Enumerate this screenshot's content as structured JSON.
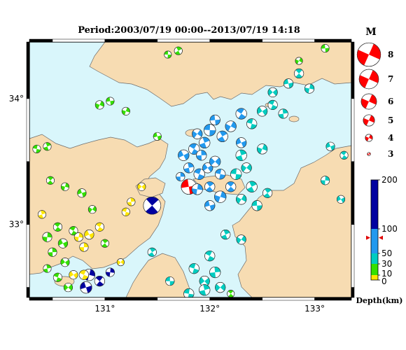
{
  "title": "Period:2003/07/19 00:00--2013/07/19 14:18",
  "map": {
    "lon_range": [
      130.28,
      133.35
    ],
    "lat_range": [
      32.42,
      34.45
    ],
    "lon_ticks": [
      {
        "value": 131,
        "label": "131°"
      },
      {
        "value": 132,
        "label": "132°"
      },
      {
        "value": 133,
        "label": "133°"
      }
    ],
    "lat_ticks": [
      {
        "value": 34,
        "label": "34°"
      },
      {
        "value": 33,
        "label": "33°"
      }
    ],
    "colors": {
      "sea": "#d9f6fb",
      "land": "#f7dcb2",
      "coast": "#6b6b6b",
      "frame": "#000000"
    }
  },
  "magnitude_legend": {
    "heading": "M",
    "items": [
      {
        "m": 8,
        "label": "8"
      },
      {
        "m": 7,
        "label": "7"
      },
      {
        "m": 6,
        "label": "6"
      },
      {
        "m": 5,
        "label": "5"
      },
      {
        "m": 4,
        "label": "4"
      },
      {
        "m": 3,
        "label": "3"
      }
    ],
    "color": "#ff0000"
  },
  "depth_legend": {
    "unit": "Depth(km)",
    "ticks": [
      {
        "value": 200,
        "label": "200"
      },
      {
        "value": 100,
        "label": "100"
      },
      {
        "value": 50,
        "label": "50"
      },
      {
        "value": 30,
        "label": "30"
      },
      {
        "value": 10,
        "label": "10"
      },
      {
        "value": 0,
        "label": "0"
      }
    ],
    "bands": [
      {
        "from": 0,
        "to": 10,
        "color": "#ffe600"
      },
      {
        "from": 10,
        "to": 30,
        "color": "#33e000"
      },
      {
        "from": 30,
        "to": 50,
        "color": "#00ccc0"
      },
      {
        "from": 50,
        "to": 100,
        "color": "#2299ee"
      },
      {
        "from": 100,
        "to": 200,
        "color": "#0000a0"
      }
    ],
    "marker_depth": 82
  },
  "events": [
    {
      "lon": 131.8,
      "lat": 33.3,
      "m": 4.3,
      "depth": 82,
      "color": "#ff0000"
    },
    {
      "lon": 131.45,
      "lat": 33.15,
      "m": 4.6,
      "depth": 150,
      "color": "#0000a0"
    },
    {
      "lon": 130.85,
      "lat": 32.6,
      "m": 3.8,
      "depth": 160,
      "color": "#0000a0"
    },
    {
      "lon": 130.82,
      "lat": 32.5,
      "m": 3.8,
      "depth": 160,
      "color": "#0000a0"
    },
    {
      "lon": 130.95,
      "lat": 32.55,
      "m": 3.6,
      "depth": 150,
      "color": "#0000a0"
    },
    {
      "lon": 131.05,
      "lat": 32.62,
      "m": 3.4,
      "depth": 150,
      "color": "#0000a0"
    },
    {
      "lon": 131.75,
      "lat": 33.55,
      "m": 3.7,
      "depth": 70,
      "color": "#2299ee"
    },
    {
      "lon": 131.85,
      "lat": 33.6,
      "m": 3.7,
      "depth": 70,
      "color": "#2299ee"
    },
    {
      "lon": 131.92,
      "lat": 33.55,
      "m": 3.6,
      "depth": 70,
      "color": "#2299ee"
    },
    {
      "lon": 131.98,
      "lat": 33.45,
      "m": 3.6,
      "depth": 70,
      "color": "#2299ee"
    },
    {
      "lon": 131.9,
      "lat": 33.4,
      "m": 3.7,
      "depth": 70,
      "color": "#2299ee"
    },
    {
      "lon": 131.8,
      "lat": 33.45,
      "m": 3.6,
      "depth": 70,
      "color": "#2299ee"
    },
    {
      "lon": 132.05,
      "lat": 33.5,
      "m": 3.7,
      "depth": 70,
      "color": "#2299ee"
    },
    {
      "lon": 132.1,
      "lat": 33.4,
      "m": 3.6,
      "depth": 70,
      "color": "#2299ee"
    },
    {
      "lon": 131.95,
      "lat": 33.65,
      "m": 3.7,
      "depth": 70,
      "color": "#2299ee"
    },
    {
      "lon": 131.88,
      "lat": 33.72,
      "m": 3.6,
      "depth": 70,
      "color": "#2299ee"
    },
    {
      "lon": 132.0,
      "lat": 33.75,
      "m": 3.8,
      "depth": 70,
      "color": "#2299ee"
    },
    {
      "lon": 132.12,
      "lat": 33.7,
      "m": 3.7,
      "depth": 70,
      "color": "#2299ee"
    },
    {
      "lon": 132.2,
      "lat": 33.78,
      "m": 3.7,
      "depth": 70,
      "color": "#2299ee"
    },
    {
      "lon": 132.05,
      "lat": 33.83,
      "m": 3.6,
      "depth": 70,
      "color": "#2299ee"
    },
    {
      "lon": 132.0,
      "lat": 33.3,
      "m": 3.6,
      "depth": 70,
      "color": "#2299ee"
    },
    {
      "lon": 132.1,
      "lat": 33.22,
      "m": 3.8,
      "depth": 70,
      "color": "#2299ee"
    },
    {
      "lon": 132.0,
      "lat": 33.15,
      "m": 3.6,
      "depth": 70,
      "color": "#2299ee"
    },
    {
      "lon": 132.2,
      "lat": 33.3,
      "m": 3.6,
      "depth": 70,
      "color": "#2299ee"
    },
    {
      "lon": 131.88,
      "lat": 33.28,
      "m": 3.7,
      "depth": 70,
      "color": "#2299ee"
    },
    {
      "lon": 132.3,
      "lat": 33.65,
      "m": 3.6,
      "depth": 70,
      "color": "#2299ee"
    },
    {
      "lon": 132.3,
      "lat": 33.88,
      "m": 3.7,
      "depth": 70,
      "color": "#2299ee"
    },
    {
      "lon": 131.72,
      "lat": 33.38,
      "m": 3.4,
      "depth": 70,
      "color": "#2299ee"
    },
    {
      "lon": 132.5,
      "lat": 33.9,
      "m": 3.6,
      "depth": 40,
      "color": "#00ccc0"
    },
    {
      "lon": 132.6,
      "lat": 33.95,
      "m": 3.5,
      "depth": 40,
      "color": "#00ccc0"
    },
    {
      "lon": 132.7,
      "lat": 33.88,
      "m": 3.5,
      "depth": 40,
      "color": "#00ccc0"
    },
    {
      "lon": 132.6,
      "lat": 34.05,
      "m": 3.5,
      "depth": 40,
      "color": "#00ccc0"
    },
    {
      "lon": 132.4,
      "lat": 33.8,
      "m": 3.6,
      "depth": 40,
      "color": "#00ccc0"
    },
    {
      "lon": 132.3,
      "lat": 33.55,
      "m": 3.7,
      "depth": 40,
      "color": "#00ccc0"
    },
    {
      "lon": 132.35,
      "lat": 33.45,
      "m": 3.6,
      "depth": 40,
      "color": "#00ccc0"
    },
    {
      "lon": 132.25,
      "lat": 33.4,
      "m": 3.7,
      "depth": 40,
      "color": "#00ccc0"
    },
    {
      "lon": 132.4,
      "lat": 33.3,
      "m": 3.7,
      "depth": 40,
      "color": "#00ccc0"
    },
    {
      "lon": 132.3,
      "lat": 33.2,
      "m": 3.6,
      "depth": 40,
      "color": "#00ccc0"
    },
    {
      "lon": 132.45,
      "lat": 33.15,
      "m": 3.6,
      "depth": 40,
      "color": "#00ccc0"
    },
    {
      "lon": 132.55,
      "lat": 33.25,
      "m": 3.5,
      "depth": 40,
      "color": "#00ccc0"
    },
    {
      "lon": 132.5,
      "lat": 33.6,
      "m": 3.6,
      "depth": 40,
      "color": "#00ccc0"
    },
    {
      "lon": 132.75,
      "lat": 34.12,
      "m": 3.5,
      "depth": 40,
      "color": "#00ccc0"
    },
    {
      "lon": 132.85,
      "lat": 34.2,
      "m": 3.5,
      "depth": 40,
      "color": "#00ccc0"
    },
    {
      "lon": 132.95,
      "lat": 34.08,
      "m": 3.5,
      "depth": 40,
      "color": "#00ccc0"
    },
    {
      "lon": 133.15,
      "lat": 33.62,
      "m": 3.4,
      "depth": 40,
      "color": "#00ccc0"
    },
    {
      "lon": 133.28,
      "lat": 33.55,
      "m": 3.3,
      "depth": 40,
      "color": "#00ccc0"
    },
    {
      "lon": 133.1,
      "lat": 33.35,
      "m": 3.4,
      "depth": 40,
      "color": "#00ccc0"
    },
    {
      "lon": 133.25,
      "lat": 33.2,
      "m": 3.3,
      "depth": 40,
      "color": "#00ccc0"
    },
    {
      "lon": 132.0,
      "lat": 32.75,
      "m": 3.6,
      "depth": 40,
      "color": "#00ccc0"
    },
    {
      "lon": 132.05,
      "lat": 32.62,
      "m": 3.7,
      "depth": 40,
      "color": "#00ccc0"
    },
    {
      "lon": 131.95,
      "lat": 32.55,
      "m": 3.6,
      "depth": 40,
      "color": "#00ccc0"
    },
    {
      "lon": 131.85,
      "lat": 32.65,
      "m": 3.6,
      "depth": 40,
      "color": "#00ccc0"
    },
    {
      "lon": 131.95,
      "lat": 32.48,
      "m": 3.7,
      "depth": 40,
      "color": "#00ccc0"
    },
    {
      "lon": 132.1,
      "lat": 32.5,
      "m": 3.6,
      "depth": 40,
      "color": "#00ccc0"
    },
    {
      "lon": 131.8,
      "lat": 32.45,
      "m": 3.6,
      "depth": 40,
      "color": "#00ccc0"
    },
    {
      "lon": 132.15,
      "lat": 32.92,
      "m": 3.5,
      "depth": 40,
      "color": "#00ccc0"
    },
    {
      "lon": 132.3,
      "lat": 32.88,
      "m": 3.5,
      "depth": 40,
      "color": "#00ccc0"
    },
    {
      "lon": 131.62,
      "lat": 32.55,
      "m": 3.4,
      "depth": 40,
      "color": "#00ccc0"
    },
    {
      "lon": 131.45,
      "lat": 32.78,
      "m": 3.4,
      "depth": 40,
      "color": "#00ccc0"
    },
    {
      "lon": 130.95,
      "lat": 33.95,
      "m": 3.4,
      "depth": 20,
      "color": "#33e000"
    },
    {
      "lon": 131.05,
      "lat": 33.98,
      "m": 3.3,
      "depth": 20,
      "color": "#33e000"
    },
    {
      "lon": 130.48,
      "lat": 33.35,
      "m": 3.3,
      "depth": 20,
      "color": "#33e000"
    },
    {
      "lon": 130.62,
      "lat": 33.3,
      "m": 3.3,
      "depth": 20,
      "color": "#33e000"
    },
    {
      "lon": 130.78,
      "lat": 33.25,
      "m": 3.4,
      "depth": 20,
      "color": "#33e000"
    },
    {
      "lon": 130.55,
      "lat": 32.98,
      "m": 3.4,
      "depth": 20,
      "color": "#33e000"
    },
    {
      "lon": 130.45,
      "lat": 32.9,
      "m": 3.5,
      "depth": 20,
      "color": "#33e000"
    },
    {
      "lon": 130.6,
      "lat": 32.85,
      "m": 3.5,
      "depth": 20,
      "color": "#33e000"
    },
    {
      "lon": 130.7,
      "lat": 32.95,
      "m": 3.4,
      "depth": 20,
      "color": "#33e000"
    },
    {
      "lon": 130.5,
      "lat": 32.78,
      "m": 3.4,
      "depth": 20,
      "color": "#33e000"
    },
    {
      "lon": 130.62,
      "lat": 32.7,
      "m": 3.4,
      "depth": 20,
      "color": "#33e000"
    },
    {
      "lon": 130.55,
      "lat": 32.58,
      "m": 3.4,
      "depth": 20,
      "color": "#33e000"
    },
    {
      "lon": 130.45,
      "lat": 32.65,
      "m": 3.3,
      "depth": 20,
      "color": "#33e000"
    },
    {
      "lon": 130.65,
      "lat": 32.5,
      "m": 3.4,
      "depth": 20,
      "color": "#33e000"
    },
    {
      "lon": 130.35,
      "lat": 33.6,
      "m": 3.3,
      "depth": 20,
      "color": "#33e000"
    },
    {
      "lon": 130.45,
      "lat": 33.62,
      "m": 3.3,
      "depth": 20,
      "color": "#33e000"
    },
    {
      "lon": 130.88,
      "lat": 33.12,
      "m": 3.3,
      "depth": 20,
      "color": "#33e000"
    },
    {
      "lon": 131.6,
      "lat": 34.35,
      "m": 3.2,
      "depth": 20,
      "color": "#33e000"
    },
    {
      "lon": 131.7,
      "lat": 34.38,
      "m": 3.3,
      "depth": 20,
      "color": "#33e000"
    },
    {
      "lon": 132.85,
      "lat": 34.3,
      "m": 3.2,
      "depth": 20,
      "color": "#33e000"
    },
    {
      "lon": 133.1,
      "lat": 34.4,
      "m": 3.3,
      "depth": 20,
      "color": "#33e000"
    },
    {
      "lon": 131.0,
      "lat": 32.85,
      "m": 3.3,
      "depth": 20,
      "color": "#33e000"
    },
    {
      "lon": 131.2,
      "lat": 33.9,
      "m": 3.3,
      "depth": 20,
      "color": "#33e000"
    },
    {
      "lon": 131.5,
      "lat": 33.7,
      "m": 3.3,
      "depth": 20,
      "color": "#33e000"
    },
    {
      "lon": 132.2,
      "lat": 32.45,
      "m": 3.2,
      "depth": 20,
      "color": "#33e000"
    },
    {
      "lon": 130.75,
      "lat": 32.9,
      "m": 3.4,
      "depth": 5,
      "color": "#ffe600"
    },
    {
      "lon": 130.85,
      "lat": 32.92,
      "m": 3.5,
      "depth": 5,
      "color": "#ffe600"
    },
    {
      "lon": 130.95,
      "lat": 32.98,
      "m": 3.4,
      "depth": 5,
      "color": "#ffe600"
    },
    {
      "lon": 130.8,
      "lat": 32.82,
      "m": 3.4,
      "depth": 5,
      "color": "#ffe600"
    },
    {
      "lon": 130.7,
      "lat": 32.6,
      "m": 3.4,
      "depth": 5,
      "color": "#ffe600"
    },
    {
      "lon": 130.8,
      "lat": 32.6,
      "m": 3.5,
      "depth": 5,
      "color": "#ffe600"
    },
    {
      "lon": 131.25,
      "lat": 33.18,
      "m": 3.3,
      "depth": 5,
      "color": "#ffe600"
    },
    {
      "lon": 131.35,
      "lat": 33.3,
      "m": 3.3,
      "depth": 5,
      "color": "#ffe600"
    },
    {
      "lon": 131.2,
      "lat": 33.1,
      "m": 3.3,
      "depth": 5,
      "color": "#ffe600"
    },
    {
      "lon": 130.4,
      "lat": 33.08,
      "m": 3.3,
      "depth": 5,
      "color": "#ffe600"
    },
    {
      "lon": 131.15,
      "lat": 32.7,
      "m": 3.2,
      "depth": 5,
      "color": "#ffe600"
    }
  ]
}
